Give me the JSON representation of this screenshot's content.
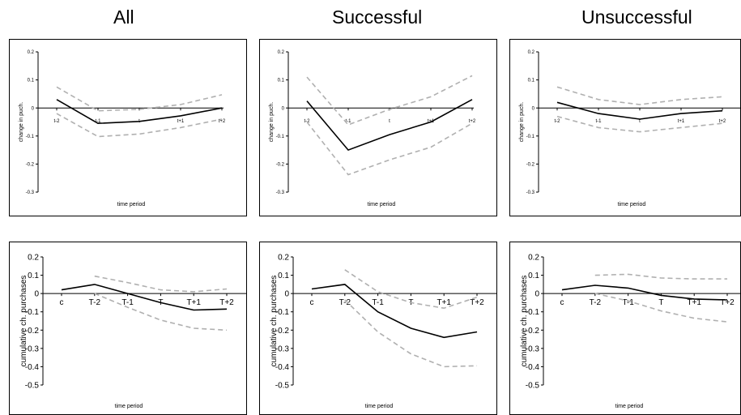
{
  "titles": [
    "All",
    "Successful",
    "Unsuccessful"
  ],
  "chart_data": [
    {
      "type": "line",
      "column_title": "All",
      "ylabel": "change in puch.",
      "xlabel": "time period",
      "categories": [
        "t-2",
        "t-1",
        "t",
        "t+1",
        "t+2"
      ],
      "ylim": [
        -0.3,
        0.2
      ],
      "yticks": [
        "0.2",
        "0.1",
        "0",
        "-0.1",
        "-0.2",
        "-0.3"
      ],
      "series": [
        {
          "values": [
            0.03,
            -0.055,
            -0.048,
            -0.028,
            0.0
          ],
          "style": "solid",
          "color": "#000000"
        },
        {
          "values": [
            0.075,
            -0.01,
            -0.005,
            0.012,
            0.047
          ],
          "style": "dashed",
          "color": "#b0b0b0"
        },
        {
          "values": [
            -0.02,
            -0.102,
            -0.093,
            -0.07,
            -0.04
          ],
          "style": "dashed",
          "color": "#b0b0b0"
        }
      ]
    },
    {
      "type": "line",
      "column_title": "Successful",
      "ylabel": "change in puch.",
      "xlabel": "time period",
      "categories": [
        "t-2",
        "t-1",
        "t",
        "t+1",
        "t+2"
      ],
      "ylim": [
        -0.3,
        0.2
      ],
      "yticks": [
        "0.2",
        "0.1",
        "0",
        "-0.1",
        "-0.2",
        "-0.3"
      ],
      "series": [
        {
          "values": [
            0.025,
            -0.15,
            -0.095,
            -0.05,
            0.03
          ],
          "style": "solid",
          "color": "#000000"
        },
        {
          "values": [
            0.11,
            -0.06,
            -0.005,
            0.04,
            0.115
          ],
          "style": "dashed",
          "color": "#b0b0b0"
        },
        {
          "values": [
            -0.05,
            -0.238,
            -0.185,
            -0.14,
            -0.055
          ],
          "style": "dashed",
          "color": "#b0b0b0"
        }
      ]
    },
    {
      "type": "line",
      "column_title": "Unsuccessful",
      "ylabel": "change in puch.",
      "xlabel": "time period",
      "categories": [
        "t-2",
        "t-1",
        "t",
        "t+1",
        "t+2"
      ],
      "ylim": [
        -0.3,
        0.2
      ],
      "yticks": [
        "0.2",
        "0.1",
        "0",
        "-0.1",
        "-0.2",
        "-0.3"
      ],
      "series": [
        {
          "values": [
            0.02,
            -0.02,
            -0.04,
            -0.02,
            -0.01
          ],
          "style": "solid",
          "color": "#000000"
        },
        {
          "values": [
            0.075,
            0.03,
            0.012,
            0.03,
            0.04
          ],
          "style": "dashed",
          "color": "#b0b0b0"
        },
        {
          "values": [
            -0.03,
            -0.07,
            -0.085,
            -0.07,
            -0.055
          ],
          "style": "dashed",
          "color": "#b0b0b0"
        }
      ]
    },
    {
      "type": "line",
      "column_title": "All",
      "ylabel": "cumulative ch. purchases",
      "xlabel": "time period",
      "categories": [
        "c",
        "T-2",
        "T-1",
        "T",
        "T+1",
        "T+2"
      ],
      "ylim": [
        -0.5,
        0.2
      ],
      "yticks": [
        "0.2",
        "0.1",
        "0",
        "-0.1",
        "-0.2",
        "-0.3",
        "-0.4",
        "-0.5"
      ],
      "series": [
        {
          "values": [
            0.02,
            0.05,
            0.0,
            -0.05,
            -0.09,
            -0.085
          ],
          "style": "solid",
          "color": "#000000"
        },
        {
          "values": [
            null,
            0.095,
            0.06,
            0.02,
            0.01,
            0.025
          ],
          "style": "dashed",
          "color": "#b0b0b0"
        },
        {
          "values": [
            null,
            0.0,
            -0.075,
            -0.145,
            -0.19,
            -0.2
          ],
          "style": "dashed",
          "color": "#b0b0b0"
        }
      ]
    },
    {
      "type": "line",
      "column_title": "Successful",
      "ylabel": "cumulative ch. purchases",
      "xlabel": "time period",
      "categories": [
        "c",
        "T-2",
        "T-1",
        "T",
        "T+1",
        "T+2"
      ],
      "ylim": [
        -0.5,
        0.2
      ],
      "yticks": [
        "0.2",
        "0.1",
        "0",
        "-0.1",
        "-0.2",
        "-0.3",
        "-0.4",
        "-0.5"
      ],
      "series": [
        {
          "values": [
            0.025,
            0.05,
            -0.1,
            -0.19,
            -0.24,
            -0.21
          ],
          "style": "solid",
          "color": "#000000"
        },
        {
          "values": [
            null,
            0.13,
            0.01,
            -0.05,
            -0.08,
            -0.02
          ],
          "style": "dashed",
          "color": "#b0b0b0"
        },
        {
          "values": [
            null,
            -0.035,
            -0.21,
            -0.33,
            -0.4,
            -0.395
          ],
          "style": "dashed",
          "color": "#b0b0b0"
        }
      ]
    },
    {
      "type": "line",
      "column_title": "Unsuccessful",
      "ylabel": "cumulative ch. purchases",
      "xlabel": "time period",
      "categories": [
        "c",
        "T-2",
        "T-1",
        "T",
        "T+1",
        "T+2"
      ],
      "ylim": [
        -0.5,
        0.2
      ],
      "yticks": [
        "0.2",
        "0.1",
        "0",
        "-0.1",
        "-0.2",
        "-0.3",
        "-0.4",
        "-0.5"
      ],
      "series": [
        {
          "values": [
            0.02,
            0.045,
            0.03,
            -0.01,
            -0.03,
            -0.035
          ],
          "style": "solid",
          "color": "#000000"
        },
        {
          "values": [
            null,
            0.1,
            0.105,
            0.085,
            0.08,
            0.08
          ],
          "style": "dashed",
          "color": "#b0b0b0"
        },
        {
          "values": [
            null,
            0.0,
            -0.04,
            -0.095,
            -0.135,
            -0.155
          ],
          "style": "dashed",
          "color": "#b0b0b0"
        }
      ]
    }
  ]
}
